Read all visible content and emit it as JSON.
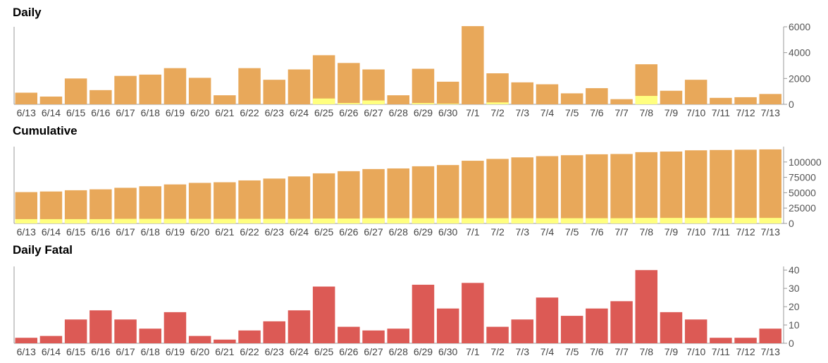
{
  "colors": {
    "primary": "#e8a85a",
    "secondary": "#ffff80",
    "fatal": "#dc5a55",
    "axis": "#999999"
  },
  "chart_data": [
    {
      "type": "bar",
      "title": "Daily",
      "categories": [
        "6/13",
        "6/14",
        "6/15",
        "6/16",
        "6/17",
        "6/18",
        "6/19",
        "6/20",
        "6/21",
        "6/22",
        "6/23",
        "6/24",
        "6/25",
        "6/26",
        "6/27",
        "6/28",
        "6/29",
        "6/30",
        "7/1",
        "7/2",
        "7/3",
        "7/4",
        "7/5",
        "7/6",
        "7/7",
        "7/8",
        "7/9",
        "7/10",
        "7/11",
        "7/12",
        "7/13"
      ],
      "series": [
        {
          "values": [
            900,
            600,
            2000,
            1100,
            2200,
            2300,
            2800,
            2050,
            700,
            2800,
            1900,
            2700,
            3800,
            3200,
            2700,
            700,
            2750,
            1750,
            6050,
            2400,
            1700,
            1550,
            850,
            1250,
            400,
            3100,
            1050,
            1900,
            500,
            550,
            800
          ]
        },
        {
          "values": [
            0,
            0,
            0,
            0,
            0,
            0,
            0,
            0,
            0,
            0,
            0,
            0,
            450,
            100,
            300,
            0,
            100,
            50,
            0,
            150,
            0,
            0,
            0,
            0,
            0,
            650,
            0,
            0,
            0,
            0,
            0
          ]
        }
      ],
      "ylim": [
        0,
        6000
      ],
      "yticks": [
        "6000",
        "4000",
        "2000",
        "0"
      ],
      "ytick_values": [
        6000,
        4000,
        2000,
        0
      ]
    },
    {
      "type": "bar",
      "title": "Cumulative",
      "categories": [
        "6/13",
        "6/14",
        "6/15",
        "6/16",
        "6/17",
        "6/18",
        "6/19",
        "6/20",
        "6/21",
        "6/22",
        "6/23",
        "6/24",
        "6/25",
        "6/26",
        "6/27",
        "6/28",
        "6/29",
        "6/30",
        "7/1",
        "7/2",
        "7/3",
        "7/4",
        "7/5",
        "7/6",
        "7/7",
        "7/8",
        "7/9",
        "7/10",
        "7/11",
        "7/12",
        "7/13"
      ],
      "series": [
        {
          "values": [
            51000,
            52000,
            54000,
            55500,
            58000,
            60500,
            63500,
            66000,
            67000,
            70000,
            73000,
            76500,
            81500,
            85000,
            88500,
            89500,
            93000,
            95000,
            102000,
            105000,
            107500,
            109500,
            111000,
            112500,
            113000,
            116000,
            117000,
            119000,
            119500,
            120000,
            120500
          ]
        },
        {
          "values": [
            7000,
            7000,
            7000,
            7000,
            7500,
            7500,
            7500,
            7500,
            7500,
            7500,
            7500,
            7500,
            8000,
            8000,
            8500,
            8500,
            8500,
            8500,
            8500,
            8500,
            8500,
            8500,
            8500,
            8500,
            8500,
            9000,
            9000,
            9000,
            9000,
            9000,
            9000
          ]
        }
      ],
      "ylim": [
        0,
        125000
      ],
      "yticks": [
        "100000",
        "75000",
        "50000",
        "25000",
        "0"
      ],
      "ytick_values": [
        100000,
        75000,
        50000,
        25000,
        0
      ]
    },
    {
      "type": "bar",
      "title": "Daily Fatal",
      "categories": [
        "6/13",
        "6/14",
        "6/15",
        "6/16",
        "6/17",
        "6/18",
        "6/19",
        "6/20",
        "6/21",
        "6/22",
        "6/23",
        "6/24",
        "6/25",
        "6/26",
        "6/27",
        "6/28",
        "6/29",
        "6/30",
        "7/1",
        "7/2",
        "7/3",
        "7/4",
        "7/5",
        "7/6",
        "7/7",
        "7/8",
        "7/9",
        "7/10",
        "7/11",
        "7/12",
        "7/13"
      ],
      "series": [
        {
          "values": [
            3,
            4,
            13,
            18,
            13,
            8,
            17,
            4,
            2,
            7,
            12,
            18,
            31,
            9,
            7,
            8,
            32,
            19,
            33,
            9,
            13,
            25,
            15,
            19,
            23,
            40,
            17,
            13,
            3,
            3,
            8
          ]
        }
      ],
      "ylim": [
        0,
        42
      ],
      "yticks": [
        "40",
        "30",
        "20",
        "10",
        "0"
      ],
      "ytick_values": [
        40,
        30,
        20,
        10,
        0
      ]
    }
  ]
}
